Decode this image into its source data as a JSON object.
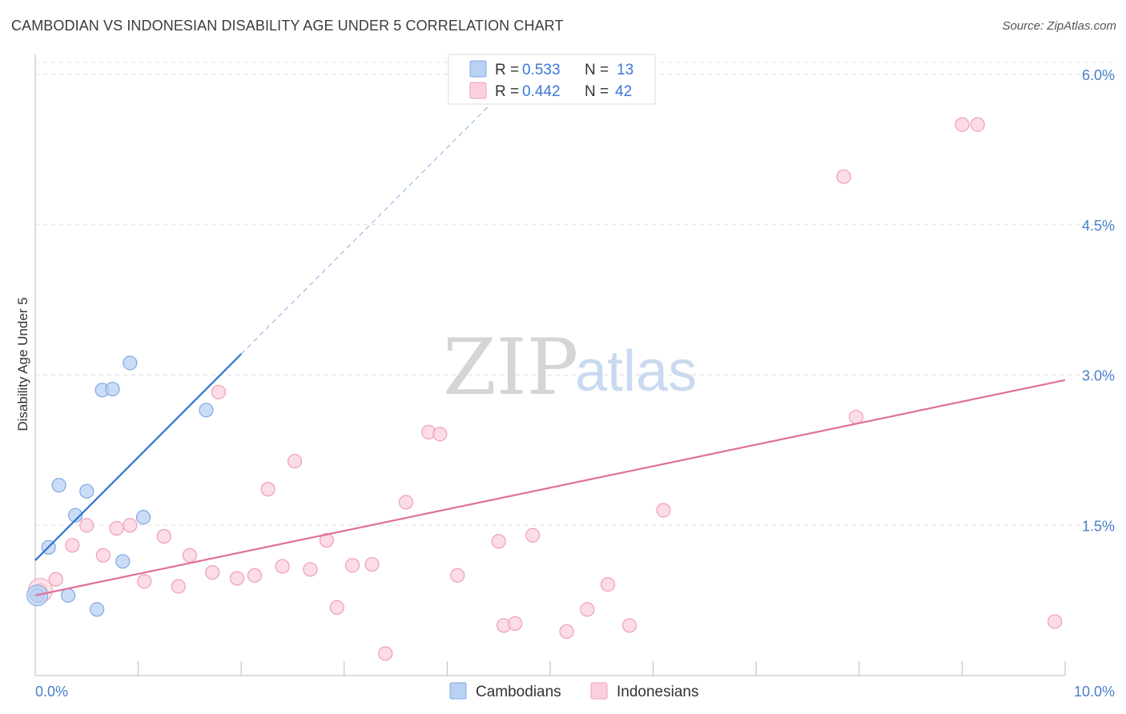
{
  "header": {
    "title": "CAMBODIAN VS INDONESIAN DISABILITY AGE UNDER 5 CORRELATION CHART",
    "source": "Source: ZipAtlas.com"
  },
  "watermark": {
    "zip": "ZIP",
    "atlas": "atlas"
  },
  "legend": {
    "r_label": "R =",
    "n_label": "N =",
    "entries": [
      {
        "name": "Cambodians",
        "r": "0.533",
        "n": "13"
      },
      {
        "name": "Indonesians",
        "r": "0.442",
        "n": "42"
      }
    ]
  },
  "colors": {
    "cambodian_fill": "#b9d1f3",
    "cambodian_stroke": "#7fa8e0",
    "cambodian_line": "#2f74cc",
    "indonesian_fill": "#fbd0dc",
    "indonesian_stroke": "#ee9fb6",
    "indonesian_line": "#e07099",
    "tick_text": "#4a7fc9",
    "grid": "#dddddd"
  },
  "chart_data": {
    "type": "scatter",
    "title": "CAMBODIAN VS INDONESIAN DISABILITY AGE UNDER 5 CORRELATION CHART",
    "xlabel": "",
    "ylabel": "Disability Age Under 5",
    "xlim": [
      0,
      10
    ],
    "ylim": [
      0,
      6.2
    ],
    "x_tick_labels": [
      "0.0%",
      "10.0%"
    ],
    "y_ticks": [
      1.5,
      3.0,
      4.5,
      6.0
    ],
    "y_tick_labels": [
      "1.5%",
      "3.0%",
      "4.5%",
      "6.0%"
    ],
    "grid": true,
    "legend_position": "top-center",
    "series": [
      {
        "name": "Cambodians",
        "points": [
          [
            0.02,
            0.8
          ],
          [
            0.13,
            1.28
          ],
          [
            0.23,
            1.9
          ],
          [
            0.32,
            0.8
          ],
          [
            0.39,
            1.6
          ],
          [
            0.5,
            1.84
          ],
          [
            0.6,
            0.66
          ],
          [
            0.65,
            2.85
          ],
          [
            0.75,
            2.86
          ],
          [
            0.85,
            1.14
          ],
          [
            0.92,
            3.12
          ],
          [
            1.05,
            1.58
          ],
          [
            1.66,
            2.65
          ]
        ],
        "trend": {
          "x0": 0.0,
          "y0": 1.15,
          "x1": 2.0,
          "y1": 3.21,
          "dash_to_x": 4.4
        }
      },
      {
        "name": "Indonesians",
        "points": [
          [
            0.05,
            0.85
          ],
          [
            0.2,
            0.96
          ],
          [
            0.36,
            1.3
          ],
          [
            0.5,
            1.5
          ],
          [
            0.66,
            1.2
          ],
          [
            0.79,
            1.47
          ],
          [
            0.92,
            1.5
          ],
          [
            1.06,
            0.94
          ],
          [
            1.25,
            1.39
          ],
          [
            1.39,
            0.89
          ],
          [
            1.5,
            1.2
          ],
          [
            1.72,
            1.03
          ],
          [
            1.78,
            2.83
          ],
          [
            1.96,
            0.97
          ],
          [
            2.13,
            1.0
          ],
          [
            2.26,
            1.86
          ],
          [
            2.4,
            1.09
          ],
          [
            2.52,
            2.14
          ],
          [
            2.67,
            1.06
          ],
          [
            2.83,
            1.35
          ],
          [
            2.93,
            0.68
          ],
          [
            3.08,
            1.1
          ],
          [
            3.27,
            1.11
          ],
          [
            3.4,
            0.22
          ],
          [
            3.6,
            1.73
          ],
          [
            3.82,
            2.43
          ],
          [
            3.93,
            2.41
          ],
          [
            4.1,
            1.0
          ],
          [
            4.5,
            1.34
          ],
          [
            4.55,
            0.5
          ],
          [
            4.66,
            0.52
          ],
          [
            4.83,
            1.4
          ],
          [
            5.16,
            0.44
          ],
          [
            5.36,
            0.66
          ],
          [
            5.56,
            0.91
          ],
          [
            5.77,
            0.5
          ],
          [
            6.1,
            1.65
          ],
          [
            7.85,
            4.98
          ],
          [
            7.97,
            2.58
          ],
          [
            9.0,
            5.5
          ],
          [
            9.15,
            5.5
          ],
          [
            9.9,
            0.54
          ]
        ],
        "trend": {
          "x0": 0.0,
          "y0": 0.8,
          "x1": 10.0,
          "y1": 2.95
        }
      }
    ]
  }
}
